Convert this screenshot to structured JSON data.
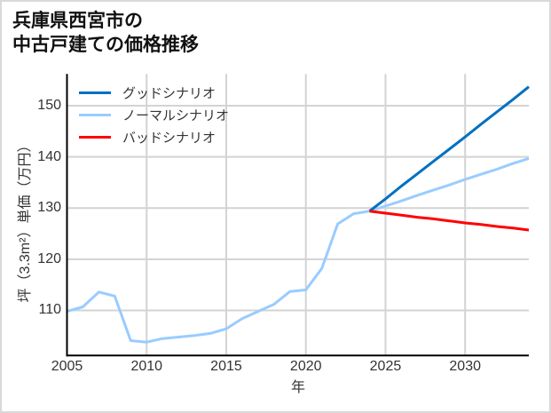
{
  "chart_data": {
    "type": "line",
    "title": "兵庫県西宮市の 中古戸建ての価格推移",
    "title_lines": [
      "兵庫県西宮市の",
      "中古戸建ての価格推移"
    ],
    "xlabel": "年",
    "ylabel": "坪（3.3m²）単価（万円）",
    "xlim": [
      2005,
      2034
    ],
    "ylim": [
      101.2,
      156.2
    ],
    "xticks": [
      2005,
      2010,
      2015,
      2020,
      2025,
      2030
    ],
    "yticks": [
      110,
      120,
      130,
      140,
      150
    ],
    "grid": true,
    "legend_position": "upper left",
    "series": [
      {
        "name": "グッドシナリオ",
        "color": "#0070c0",
        "x": [
          2024,
          2025,
          2026,
          2027,
          2028,
          2029,
          2030,
          2031,
          2032,
          2033,
          2034
        ],
        "y": [
          129.4,
          131.8,
          134.3,
          136.7,
          139.1,
          141.5,
          143.9,
          146.4,
          148.8,
          151.2,
          153.7
        ]
      },
      {
        "name": "ノーマルシナリオ",
        "color": "#99ccff",
        "x": [
          2005,
          2006,
          2007,
          2008,
          2009,
          2010,
          2011,
          2012,
          2013,
          2014,
          2015,
          2016,
          2017,
          2018,
          2019,
          2020,
          2021,
          2022,
          2023,
          2024,
          2025,
          2026,
          2027,
          2028,
          2029,
          2030,
          2031,
          2032,
          2033,
          2034
        ],
        "y": [
          109.8,
          110.7,
          113.6,
          112.8,
          104.1,
          103.8,
          104.5,
          104.8,
          105.1,
          105.5,
          106.4,
          108.4,
          109.8,
          111.2,
          113.7,
          114.0,
          118.2,
          126.9,
          128.9,
          129.4,
          130.4,
          131.4,
          132.5,
          133.5,
          134.5,
          135.6,
          136.6,
          137.6,
          138.7,
          139.7
        ]
      },
      {
        "name": "バッドシナリオ",
        "color": "#ff0000",
        "x": [
          2024,
          2025,
          2026,
          2027,
          2028,
          2029,
          2030,
          2031,
          2032,
          2033,
          2034
        ],
        "y": [
          129.4,
          129.0,
          128.6,
          128.2,
          127.9,
          127.5,
          127.1,
          126.8,
          126.4,
          126.1,
          125.7
        ]
      }
    ]
  },
  "colors": {
    "grid": "#d3d3d3",
    "spine": "#000000",
    "frame": "#d9d9d9"
  }
}
